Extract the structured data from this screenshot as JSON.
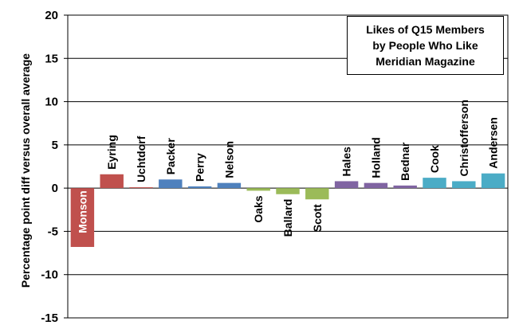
{
  "chart_data": {
    "type": "bar",
    "title_lines": [
      "Likes of Q15 Members",
      "by People Who Like",
      "Meridian Magazine"
    ],
    "xlabel": "",
    "ylabel": "Percentage point diff versus overall average",
    "ylim": [
      -15,
      20
    ],
    "yticks": [
      -15,
      -10,
      -5,
      0,
      5,
      10,
      15,
      20
    ],
    "grid": true,
    "legend": "none",
    "categories": [
      "Monson",
      "Eyring",
      "Uchtdorf",
      "Packer",
      "Perry",
      "Nelson",
      "Oaks",
      "Ballard",
      "Scott",
      "Hales",
      "Holland",
      "Bednar",
      "Cook",
      "Christofferson",
      "Andersen"
    ],
    "values": [
      -6.8,
      1.6,
      0.1,
      1.0,
      0.2,
      0.6,
      -0.3,
      -0.7,
      -1.3,
      0.8,
      0.6,
      0.3,
      1.2,
      0.8,
      1.7
    ],
    "colors": [
      "#c0504d",
      "#c0504d",
      "#c0504d",
      "#4f81bd",
      "#4f81bd",
      "#4f81bd",
      "#9bbb59",
      "#9bbb59",
      "#9bbb59",
      "#8064a2",
      "#8064a2",
      "#8064a2",
      "#4bacc6",
      "#4bacc6",
      "#4bacc6"
    ]
  }
}
